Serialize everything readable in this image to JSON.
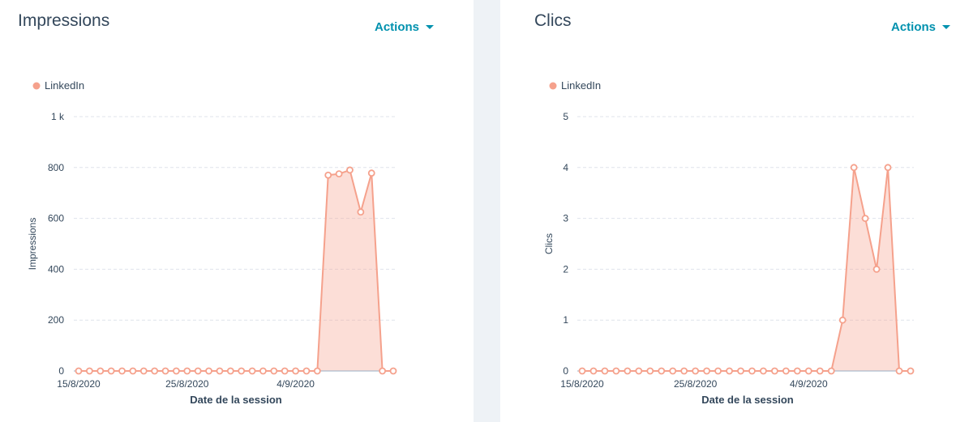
{
  "panels": [
    {
      "title": "Impressions",
      "actions_label": "Actions",
      "chart_data": {
        "type": "area",
        "xlabel": "Date de la session",
        "ylabel": "Impressions",
        "ylim": [
          0,
          1000
        ],
        "yticks": [
          {
            "value": 0,
            "label": "0"
          },
          {
            "value": 200,
            "label": "200"
          },
          {
            "value": 400,
            "label": "400"
          },
          {
            "value": 600,
            "label": "600"
          },
          {
            "value": 800,
            "label": "800"
          },
          {
            "value": 1000,
            "label": "1 k"
          }
        ],
        "xticks": [
          {
            "index": 0,
            "label": "15/8/2020"
          },
          {
            "index": 10,
            "label": "25/8/2020"
          },
          {
            "index": 20,
            "label": "4/9/2020"
          }
        ],
        "grid": true,
        "legend_position": "top-left",
        "series": [
          {
            "name": "LinkedIn",
            "color": "#f5a18c",
            "values": [
              0,
              0,
              0,
              0,
              0,
              0,
              0,
              0,
              0,
              0,
              0,
              0,
              0,
              0,
              0,
              0,
              0,
              0,
              0,
              0,
              0,
              0,
              0,
              770,
              775,
              790,
              625,
              778,
              0,
              0
            ]
          }
        ]
      }
    },
    {
      "title": "Clics",
      "actions_label": "Actions",
      "chart_data": {
        "type": "area",
        "xlabel": "Date de la session",
        "ylabel": "Clics",
        "ylim": [
          0,
          5
        ],
        "yticks": [
          {
            "value": 0,
            "label": "0"
          },
          {
            "value": 1,
            "label": "1"
          },
          {
            "value": 2,
            "label": "2"
          },
          {
            "value": 3,
            "label": "3"
          },
          {
            "value": 4,
            "label": "4"
          },
          {
            "value": 5,
            "label": "5"
          }
        ],
        "xticks": [
          {
            "index": 0,
            "label": "15/8/2020"
          },
          {
            "index": 10,
            "label": "25/8/2020"
          },
          {
            "index": 20,
            "label": "4/9/2020"
          }
        ],
        "grid": true,
        "legend_position": "top-left",
        "series": [
          {
            "name": "LinkedIn",
            "color": "#f5a18c",
            "values": [
              0,
              0,
              0,
              0,
              0,
              0,
              0,
              0,
              0,
              0,
              0,
              0,
              0,
              0,
              0,
              0,
              0,
              0,
              0,
              0,
              0,
              0,
              0,
              1,
              4,
              3,
              2,
              4,
              0,
              0
            ]
          }
        ]
      }
    }
  ]
}
